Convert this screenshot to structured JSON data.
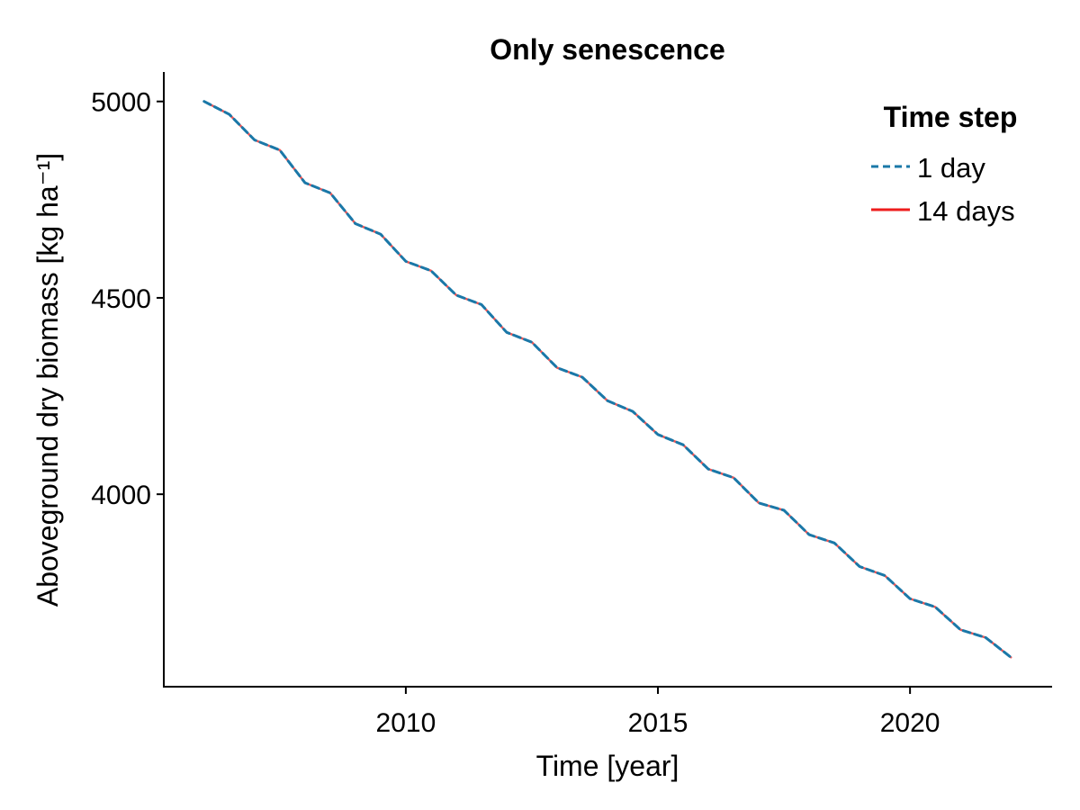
{
  "chart_data": {
    "type": "line",
    "title": "Only senescence",
    "xlabel": "Time [year]",
    "ylabel": "Aboveground dry biomass [kg ha⁻¹]",
    "xlim": [
      2005.2,
      2022.8
    ],
    "ylim": [
      3510,
      5075
    ],
    "xticks": [
      2010,
      2015,
      2020
    ],
    "yticks": [
      4000,
      4500,
      5000
    ],
    "grid": false,
    "legend": {
      "title": "Time step",
      "position": "top-right"
    },
    "x": [
      2006.0,
      2006.5,
      2007.0,
      2007.5,
      2008.0,
      2008.5,
      2009.0,
      2009.5,
      2010.0,
      2010.5,
      2011.0,
      2011.5,
      2012.0,
      2012.5,
      2013.0,
      2013.5,
      2014.0,
      2014.5,
      2015.0,
      2015.5,
      2016.0,
      2016.5,
      2017.0,
      2017.5,
      2018.0,
      2018.5,
      2019.0,
      2019.5,
      2020.0,
      2020.5,
      2021.0,
      2021.5,
      2022.0
    ],
    "series": [
      {
        "name": "1 day",
        "color": "#1a78a8",
        "style": "dashed",
        "values": [
          5000,
          4967,
          4902,
          4876,
          4793,
          4767,
          4689,
          4662,
          4593,
          4569,
          4507,
          4483,
          4412,
          4387,
          4322,
          4298,
          4238,
          4211,
          4152,
          4126,
          4064,
          4042,
          3978,
          3959,
          3897,
          3876,
          3816,
          3793,
          3734,
          3713,
          3655,
          3635,
          3585
        ]
      },
      {
        "name": "14 days",
        "color": "#ee1c1c",
        "style": "solid",
        "values": [
          5000,
          4967,
          4902,
          4876,
          4793,
          4767,
          4689,
          4662,
          4593,
          4569,
          4507,
          4483,
          4412,
          4387,
          4322,
          4298,
          4238,
          4211,
          4152,
          4126,
          4064,
          4042,
          3978,
          3959,
          3897,
          3876,
          3816,
          3793,
          3734,
          3713,
          3655,
          3635,
          3585
        ]
      }
    ]
  }
}
